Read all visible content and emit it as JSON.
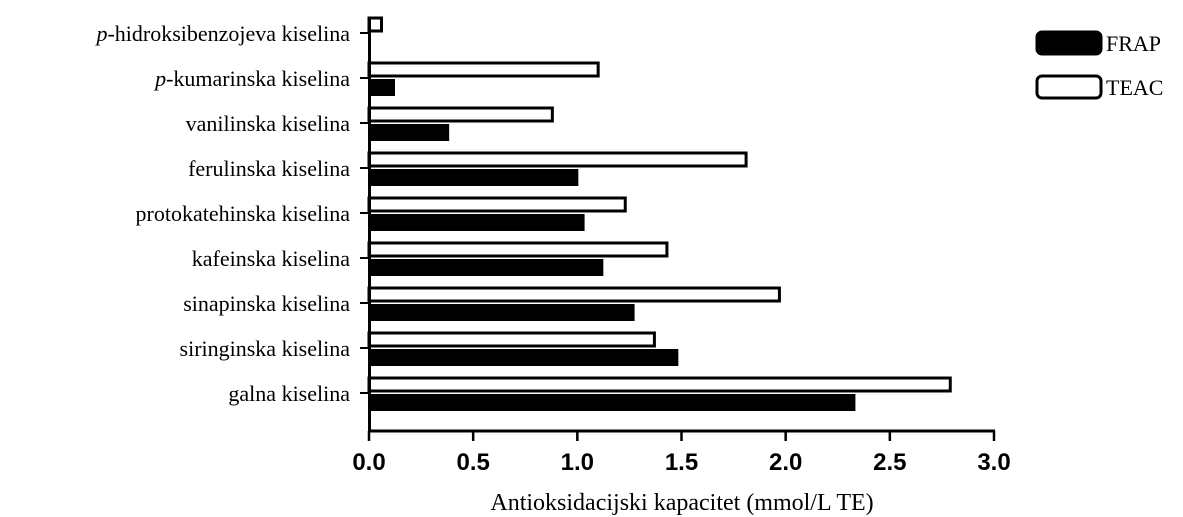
{
  "chart_data": {
    "type": "bar",
    "orientation": "horizontal",
    "categories": [
      "galna kiselina",
      "siringinska kiselina",
      "sinapinska kiselina",
      "kafeinska kiselina",
      "protokatehinska kiselina",
      "ferulinska kiselina",
      "vanilinska kiselina",
      "-kumarinska kiselina",
      "-hidroksibenzojeva kiselina"
    ],
    "category_prefix_italic": [
      "",
      "",
      "",
      "",
      "",
      "",
      "",
      "p",
      "p"
    ],
    "series": [
      {
        "name": "FRAP",
        "color": "#000000",
        "values": [
          2.33,
          1.48,
          1.27,
          1.12,
          1.03,
          1.0,
          0.38,
          0.12,
          0.0
        ]
      },
      {
        "name": "TEAC",
        "color": "#ffffff",
        "values": [
          2.79,
          1.37,
          1.97,
          1.43,
          1.23,
          1.81,
          0.88,
          1.1,
          0.06
        ]
      }
    ],
    "xlabel": "Antioksidacijski kapacitet (mmol/L TE)",
    "xlim": [
      0,
      3.0
    ],
    "xticks": [
      "0.0",
      "0.5",
      "1.0",
      "1.5",
      "2.0",
      "2.5",
      "3.0"
    ],
    "grid": false,
    "legend": "top-right"
  }
}
